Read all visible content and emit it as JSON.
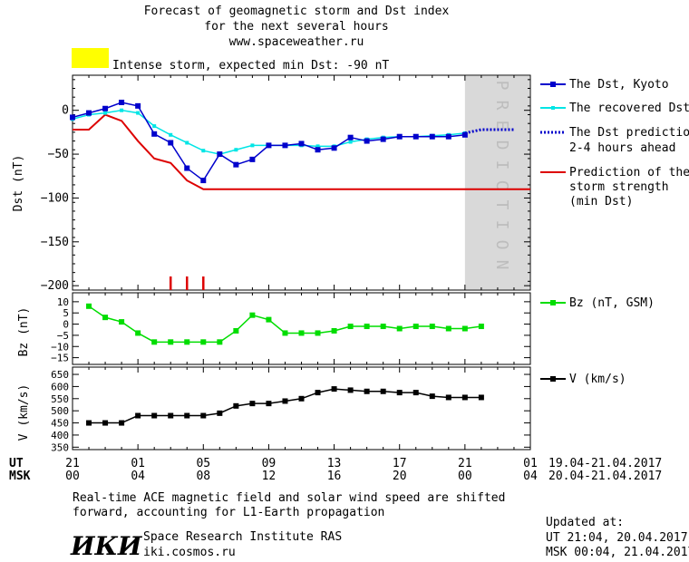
{
  "header": {
    "title_line1": "Forecast of geomagnetic storm and Dst index",
    "title_line2": "for the next several hours",
    "url": "www.spaceweather.ru",
    "alert_color": "#ffff00",
    "alert_text": "Intense storm, expected min Dst: -90 nT"
  },
  "prediction_label": "PREDICTION",
  "legend": {
    "dst_kyoto": "The Dst, Kyoto",
    "recovered": "The recovered Dst",
    "prediction_1": "The Dst prediction",
    "prediction_2": "2-4 hours ahead",
    "strength_1": "Prediction of the",
    "strength_2": "storm strength",
    "strength_3": "(min Dst)",
    "bz": "Bz (nT, GSM)",
    "v": "V (km/s)"
  },
  "axes": {
    "dst_label": "Dst (nT)",
    "bz_label": "Bz (nT)",
    "v_label": "V (km/s)",
    "ut_label": "UT",
    "msk_label": "MSK",
    "ut_ticks": [
      "21",
      "01",
      "05",
      "09",
      "13",
      "17",
      "21",
      "01"
    ],
    "msk_ticks": [
      "00",
      "04",
      "08",
      "12",
      "16",
      "20",
      "00",
      "04"
    ],
    "ut_range": "19.04-21.04.2017",
    "msk_range": "20.04-21.04.2017"
  },
  "footer": {
    "note_line1": "Real-time ACE magnetic field and solar wind speed are shifted",
    "note_line2": "forward, accounting for L1-Earth propagation",
    "logo_text": "ИКИ",
    "institute": "Space Research Institute RAS",
    "site": "iki.cosmos.ru",
    "updated_label": "Updated at:",
    "updated_ut": "UT  21:04, 20.04.2017",
    "updated_msk": "MSK 00:04, 21.04.2017"
  },
  "colors": {
    "dst": "#0000cc",
    "recovered": "#00e5e5",
    "strength": "#dd0000",
    "bz": "#00dd00",
    "v": "#000000",
    "prediction_band": "#d9d9d9"
  },
  "chart_data": [
    {
      "type": "line",
      "panel": "dst",
      "x_unit": "hours since 21 UT 19.04.2017",
      "xlim": [
        0,
        28
      ],
      "ylim": [
        -205,
        40
      ],
      "yticks": [
        0,
        -50,
        -100,
        -150,
        -200
      ],
      "ylabel": "Dst (nT)",
      "prediction_start": 24,
      "series": [
        {
          "name": "The Dst, Kyoto",
          "x": [
            0,
            1,
            2,
            3,
            4,
            5,
            6,
            7,
            8,
            9,
            10,
            11,
            12,
            13,
            14,
            15,
            16,
            17,
            18,
            19,
            20,
            21,
            22,
            23,
            24
          ],
          "y": [
            -8,
            -3,
            2,
            9,
            5,
            -27,
            -37,
            -66,
            -80,
            -50,
            -62,
            -56,
            -40,
            -40,
            -38,
            -45,
            -43,
            -31,
            -35,
            -33,
            -30,
            -30,
            -30,
            -30,
            -28
          ]
        },
        {
          "name": "The recovered Dst",
          "x": [
            0,
            1,
            2,
            3,
            4,
            5,
            6,
            7,
            8,
            9,
            10,
            11,
            12,
            13,
            14,
            15,
            16,
            17,
            18,
            19,
            20,
            21,
            22,
            23,
            24
          ],
          "y": [
            -10,
            -5,
            -3,
            0,
            -3,
            -18,
            -28,
            -37,
            -46,
            -50,
            -45,
            -40,
            -40,
            -40,
            -40,
            -41,
            -41,
            -36,
            -33,
            -31,
            -30,
            -30,
            -29,
            -28,
            -26
          ]
        },
        {
          "name": "The Dst prediction 2-4 hours ahead",
          "x": [
            24,
            25,
            26,
            27
          ],
          "y": [
            -26,
            -22,
            -22,
            -22
          ]
        },
        {
          "name": "Prediction of the storm strength (min Dst)",
          "x": [
            0,
            1,
            2,
            3,
            4,
            5,
            6,
            7,
            8,
            9,
            10,
            12,
            14,
            16,
            18,
            20,
            22,
            24,
            26,
            28
          ],
          "y": [
            -22,
            -22,
            -5,
            -12,
            -35,
            -55,
            -60,
            -80,
            -90,
            -90,
            -90,
            -90,
            -90,
            -90,
            -90,
            -90,
            -90,
            -90,
            -90,
            -90
          ]
        }
      ],
      "markers_x": [
        6,
        7,
        8
      ]
    },
    {
      "type": "line",
      "panel": "bz",
      "xlim": [
        0,
        28
      ],
      "ylim": [
        -18,
        14
      ],
      "yticks": [
        10,
        5,
        0,
        -5,
        -10,
        -15
      ],
      "ylabel": "Bz (nT)",
      "series": [
        {
          "name": "Bz (nT, GSM)",
          "x": [
            1,
            2,
            3,
            4,
            5,
            6,
            7,
            8,
            9,
            10,
            11,
            12,
            13,
            14,
            15,
            16,
            17,
            18,
            19,
            20,
            21,
            22,
            23,
            24,
            25
          ],
          "y": [
            8,
            3,
            1,
            -4,
            -8,
            -8,
            -8,
            -8,
            -8,
            -3,
            4,
            2,
            -4,
            -4,
            -4,
            -3,
            -1,
            -1,
            -1,
            -2,
            -1,
            -1,
            -2,
            -2,
            -1
          ]
        }
      ]
    },
    {
      "type": "line",
      "panel": "v",
      "xlim": [
        0,
        28
      ],
      "ylim": [
        340,
        680
      ],
      "yticks": [
        650,
        600,
        550,
        500,
        450,
        400,
        350
      ],
      "ylabel": "V (km/s)",
      "series": [
        {
          "name": "V (km/s)",
          "x": [
            1,
            2,
            3,
            4,
            5,
            6,
            7,
            8,
            9,
            10,
            11,
            12,
            13,
            14,
            15,
            16,
            17,
            18,
            19,
            20,
            21,
            22,
            23,
            24,
            25
          ],
          "y": [
            450,
            450,
            450,
            480,
            480,
            480,
            480,
            480,
            490,
            520,
            530,
            530,
            540,
            550,
            575,
            590,
            585,
            580,
            580,
            575,
            575,
            560,
            555,
            555,
            555
          ]
        }
      ]
    }
  ]
}
